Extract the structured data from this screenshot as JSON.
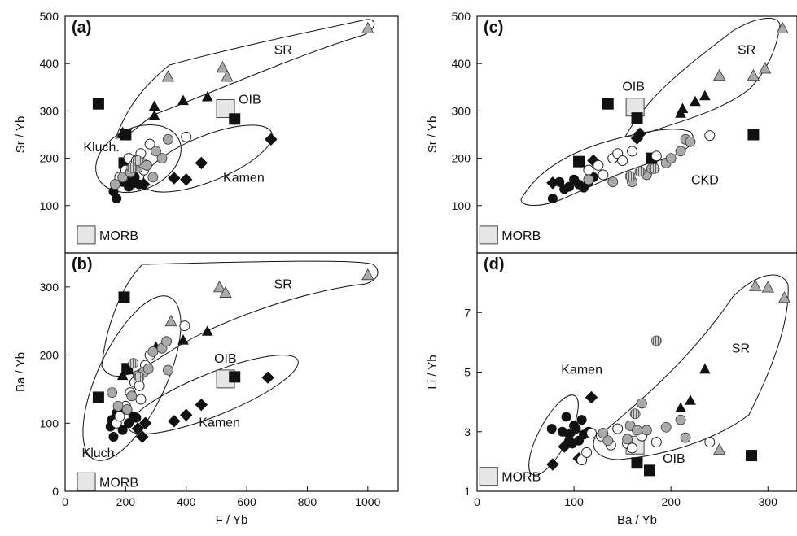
{
  "chart_data": [
    {
      "panel": "(a)",
      "type": "scatter",
      "xlabel": "",
      "ylabel": "Sr / Yb",
      "xlim": [
        0,
        1100
      ],
      "ylim": [
        0,
        500
      ],
      "xticks": [],
      "yticks": [
        100,
        200,
        300,
        400,
        500
      ],
      "series": [
        {
          "marker": "filled-square",
          "points": [
            [
              110,
              315
            ],
            [
              195,
              190
            ],
            [
              200,
              250
            ],
            [
              560,
              283
            ]
          ]
        },
        {
          "marker": "filled-triangle",
          "points": [
            [
              190,
              255
            ],
            [
              295,
              290
            ],
            [
              295,
              310
            ],
            [
              390,
              322
            ],
            [
              470,
              330
            ]
          ]
        },
        {
          "marker": "gray-triangle",
          "points": [
            [
              340,
              373
            ],
            [
              520,
              392
            ],
            [
              535,
              373
            ],
            [
              1000,
              475
            ]
          ]
        },
        {
          "marker": "filled-diamond",
          "points": [
            [
              230,
              150
            ],
            [
              260,
              145
            ],
            [
              360,
              158
            ],
            [
              400,
              155
            ],
            [
              450,
              190
            ],
            [
              680,
              240
            ]
          ]
        },
        {
          "marker": "filled-circle",
          "points": [
            [
              160,
              130
            ],
            [
              165,
              145
            ],
            [
              170,
              115
            ],
            [
              180,
              155
            ],
            [
              190,
              150
            ],
            [
              200,
              165
            ],
            [
              210,
              140
            ],
            [
              220,
              150
            ],
            [
              230,
              160
            ],
            [
              245,
              145
            ]
          ]
        },
        {
          "marker": "open-circle",
          "points": [
            [
              180,
              160
            ],
            [
              200,
              175
            ],
            [
              210,
              200
            ],
            [
              225,
              185
            ],
            [
              235,
              195
            ],
            [
              250,
              210
            ],
            [
              260,
              175
            ],
            [
              280,
              230
            ],
            [
              400,
              245
            ]
          ]
        },
        {
          "marker": "gray-circle",
          "points": [
            [
              165,
              145
            ],
            [
              190,
              160
            ],
            [
              215,
              170
            ],
            [
              240,
              180
            ],
            [
              255,
              190
            ],
            [
              270,
              185
            ],
            [
              290,
              160
            ],
            [
              300,
              215
            ],
            [
              320,
              200
            ],
            [
              340,
              240
            ]
          ]
        },
        {
          "marker": "hatched-circle",
          "points": [
            [
              220,
              180
            ],
            [
              240,
              195
            ]
          ]
        }
      ],
      "reference": [
        {
          "label": "OIB",
          "x": 530,
          "y": 305
        },
        {
          "label": "MORB",
          "x": 70,
          "y": 38
        }
      ],
      "field_labels": [
        {
          "text": "SR",
          "x": 720,
          "y": 420
        },
        {
          "text": "Kluch.",
          "x": 120,
          "y": 215
        },
        {
          "text": "Kamen",
          "x": 590,
          "y": 150
        }
      ]
    },
    {
      "panel": "(b)",
      "type": "scatter",
      "xlabel": "F / Yb",
      "ylabel": "Ba / Yb",
      "xlim": [
        0,
        1100
      ],
      "ylim": [
        0,
        350
      ],
      "xticks": [
        0,
        200,
        400,
        600,
        800,
        1000
      ],
      "yticks": [
        0,
        100,
        200,
        300
      ],
      "series": [
        {
          "marker": "filled-square",
          "points": [
            [
              110,
              138
            ],
            [
              195,
              285
            ],
            [
              205,
              180
            ],
            [
              560,
              168
            ]
          ]
        },
        {
          "marker": "filled-triangle",
          "points": [
            [
              190,
              170
            ],
            [
              300,
              212
            ],
            [
              390,
              222
            ],
            [
              470,
              235
            ]
          ]
        },
        {
          "marker": "gray-triangle",
          "points": [
            [
              350,
              250
            ],
            [
              510,
              300
            ],
            [
              530,
              292
            ],
            [
              1000,
              318
            ]
          ]
        },
        {
          "marker": "filled-diamond",
          "points": [
            [
              240,
              92
            ],
            [
              255,
              80
            ],
            [
              265,
              100
            ],
            [
              360,
              103
            ],
            [
              400,
              112
            ],
            [
              450,
              127
            ],
            [
              670,
              167
            ]
          ]
        },
        {
          "marker": "filled-circle",
          "points": [
            [
              150,
              95
            ],
            [
              155,
              105
            ],
            [
              160,
              80
            ],
            [
              170,
              115
            ],
            [
              180,
              120
            ],
            [
              190,
              90
            ],
            [
              200,
              125
            ],
            [
              210,
              100
            ],
            [
              225,
              110
            ],
            [
              235,
              108
            ]
          ]
        },
        {
          "marker": "open-circle",
          "points": [
            [
              170,
              100
            ],
            [
              180,
              110
            ],
            [
              200,
              125
            ],
            [
              215,
              145
            ],
            [
              230,
              160
            ],
            [
              245,
              155
            ],
            [
              250,
              135
            ],
            [
              265,
              185
            ],
            [
              280,
              200
            ],
            [
              395,
              243
            ]
          ]
        },
        {
          "marker": "gray-circle",
          "points": [
            [
              155,
              145
            ],
            [
              175,
              125
            ],
            [
              205,
              120
            ],
            [
              220,
              140
            ],
            [
              240,
              170
            ],
            [
              260,
              175
            ],
            [
              275,
              180
            ],
            [
              290,
              205
            ],
            [
              320,
              210
            ],
            [
              335,
              220
            ],
            [
              340,
              178
            ]
          ]
        },
        {
          "marker": "hatched-circle",
          "points": [
            [
              225,
              188
            ],
            [
              245,
              168
            ]
          ]
        }
      ],
      "reference": [
        {
          "label": "OIB",
          "x": 530,
          "y": 165
        },
        {
          "label": "MORB",
          "x": 70,
          "y": 14
        }
      ],
      "field_labels": [
        {
          "text": "SR",
          "x": 720,
          "y": 298
        },
        {
          "text": "Kluch.",
          "x": 115,
          "y": 50
        },
        {
          "text": "Kamen",
          "x": 510,
          "y": 95
        }
      ]
    },
    {
      "panel": "(c)",
      "type": "scatter",
      "xlabel": "",
      "ylabel": "Sr / Yb",
      "xlim": [
        0,
        330
      ],
      "ylim": [
        0,
        500
      ],
      "xticks": [],
      "yticks": [
        100,
        200,
        300,
        400,
        500
      ],
      "series": [
        {
          "marker": "filled-square",
          "points": [
            [
              105,
              193
            ],
            [
              135,
              315
            ],
            [
              165,
              285
            ],
            [
              180,
              200
            ],
            [
              285,
              250
            ]
          ]
        },
        {
          "marker": "filled-triangle",
          "points": [
            [
              210,
              295
            ],
            [
              212,
              305
            ],
            [
              225,
              320
            ],
            [
              235,
              332
            ]
          ]
        },
        {
          "marker": "gray-triangle",
          "points": [
            [
              250,
              375
            ],
            [
              285,
              375
            ],
            [
              297,
              390
            ],
            [
              315,
              475
            ]
          ]
        },
        {
          "marker": "filled-diamond",
          "points": [
            [
              78,
              148
            ],
            [
              120,
              195
            ],
            [
              165,
              242
            ],
            [
              168,
              252
            ]
          ]
        },
        {
          "marker": "filled-circle",
          "points": [
            [
              78,
              115
            ],
            [
              85,
              150
            ],
            [
              90,
              135
            ],
            [
              95,
              140
            ],
            [
              100,
              155
            ],
            [
              105,
              145
            ],
            [
              110,
              138
            ],
            [
              115,
              150
            ],
            [
              120,
              160
            ]
          ]
        },
        {
          "marker": "open-circle",
          "points": [
            [
              115,
              175
            ],
            [
              125,
              185
            ],
            [
              130,
              165
            ],
            [
              140,
              200
            ],
            [
              145,
              210
            ],
            [
              150,
              195
            ],
            [
              160,
              215
            ],
            [
              185,
              205
            ],
            [
              240,
              248
            ]
          ]
        },
        {
          "marker": "gray-circle",
          "points": [
            [
              115,
              155
            ],
            [
              140,
              150
            ],
            [
              160,
              150
            ],
            [
              175,
              165
            ],
            [
              180,
              178
            ],
            [
              195,
              190
            ],
            [
              200,
              200
            ],
            [
              210,
              215
            ],
            [
              215,
              240
            ],
            [
              220,
              235
            ]
          ]
        },
        {
          "marker": "hatched-circle",
          "points": [
            [
              158,
              162
            ],
            [
              168,
              172
            ],
            [
              183,
              178
            ]
          ]
        }
      ],
      "reference": [
        {
          "label": "OIB",
          "x": 163,
          "y": 308
        },
        {
          "label": "MORB",
          "x": 12,
          "y": 38
        }
      ],
      "field_labels": [
        {
          "text": "SR",
          "x": 278,
          "y": 420
        },
        {
          "text": "CKD",
          "x": 235,
          "y": 145
        }
      ]
    },
    {
      "panel": "(d)",
      "type": "scatter",
      "xlabel": "Ba / Yb",
      "ylabel": "Li / Yb",
      "xlim": [
        0,
        330
      ],
      "ylim": [
        1,
        9
      ],
      "xticks": [
        0,
        100,
        200,
        300
      ],
      "yticks": [
        1,
        3,
        5,
        7
      ],
      "series": [
        {
          "marker": "filled-square",
          "points": [
            [
              165,
              1.95
            ],
            [
              178,
              1.7
            ],
            [
              283,
              2.2
            ]
          ]
        },
        {
          "marker": "filled-triangle",
          "points": [
            [
              210,
              3.8
            ],
            [
              220,
              4.05
            ],
            [
              235,
              5.1
            ]
          ]
        },
        {
          "marker": "gray-triangle",
          "points": [
            [
              250,
              2.4
            ],
            [
              287,
              7.9
            ],
            [
              300,
              7.85
            ],
            [
              317,
              7.5
            ]
          ]
        },
        {
          "marker": "filled-diamond",
          "points": [
            [
              78,
              1.9
            ],
            [
              90,
              2.5
            ],
            [
              95,
              2.9
            ],
            [
              105,
              2.1
            ],
            [
              118,
              4.15
            ]
          ]
        },
        {
          "marker": "filled-circle",
          "points": [
            [
              77,
              3.1
            ],
            [
              88,
              3.0
            ],
            [
              92,
              3.5
            ],
            [
              95,
              2.7
            ],
            [
              98,
              2.6
            ],
            [
              100,
              3.2
            ],
            [
              102,
              3.1
            ],
            [
              105,
              2.7
            ],
            [
              108,
              3.4
            ],
            [
              110,
              2.9
            ],
            [
              115,
              3.0
            ]
          ]
        },
        {
          "marker": "open-circle",
          "points": [
            [
              108,
              2.05
            ],
            [
              113,
              2.3
            ],
            [
              118,
              2.95
            ],
            [
              128,
              2.85
            ],
            [
              138,
              2.55
            ],
            [
              145,
              3.1
            ],
            [
              155,
              2.6
            ],
            [
              160,
              2.45
            ],
            [
              170,
              2.85
            ],
            [
              185,
              2.65
            ],
            [
              240,
              2.65
            ]
          ]
        },
        {
          "marker": "gray-circle",
          "points": [
            [
              130,
              2.95
            ],
            [
              135,
              2.7
            ],
            [
              155,
              2.75
            ],
            [
              158,
              3.2
            ],
            [
              165,
              3.05
            ],
            [
              170,
              3.95
            ],
            [
              175,
              3.05
            ],
            [
              195,
              3.15
            ],
            [
              210,
              3.4
            ],
            [
              215,
              2.8
            ]
          ]
        },
        {
          "marker": "hatched-circle",
          "points": [
            [
              163,
              3.6
            ],
            [
              185,
              6.05
            ]
          ]
        }
      ],
      "reference": [
        {
          "label": "OIB",
          "x": 163,
          "y": 2.55
        },
        {
          "label": "MORB",
          "x": 12,
          "y": 1.5
        }
      ],
      "field_labels": [
        {
          "text": "SR",
          "x": 272,
          "y": 5.65
        },
        {
          "text": "Kamen",
          "x": 108,
          "y": 4.95
        }
      ]
    }
  ]
}
